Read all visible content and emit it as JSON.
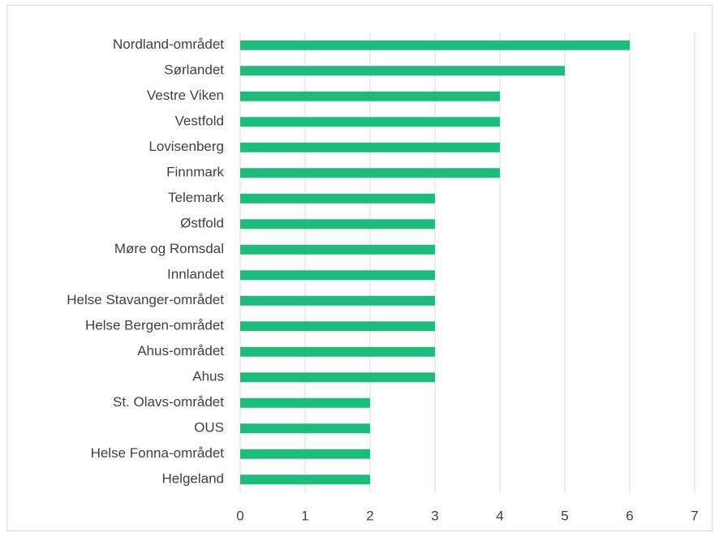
{
  "chart_data": {
    "type": "bar",
    "orientation": "horizontal",
    "categories": [
      "Nordland-området",
      "Sørlandet",
      "Vestre Viken",
      "Vestfold",
      "Lovisenberg",
      "Finnmark",
      "Telemark",
      "Østfold",
      "Møre og Romsdal",
      "Innlandet",
      "Helse Stavanger-området",
      "Helse Bergen-området",
      "Ahus-området",
      "Ahus",
      "St. Olavs-området",
      "OUS",
      "Helse Fonna-området",
      "Helgeland"
    ],
    "values": [
      6,
      5,
      4,
      4,
      4,
      4,
      3,
      3,
      3,
      3,
      3,
      3,
      3,
      3,
      2,
      2,
      2,
      2
    ],
    "color": "#1dbb7c",
    "xlim": [
      0,
      7
    ],
    "xticks": [
      0,
      1,
      2,
      3,
      4,
      5,
      6,
      7
    ],
    "grid": true
  }
}
